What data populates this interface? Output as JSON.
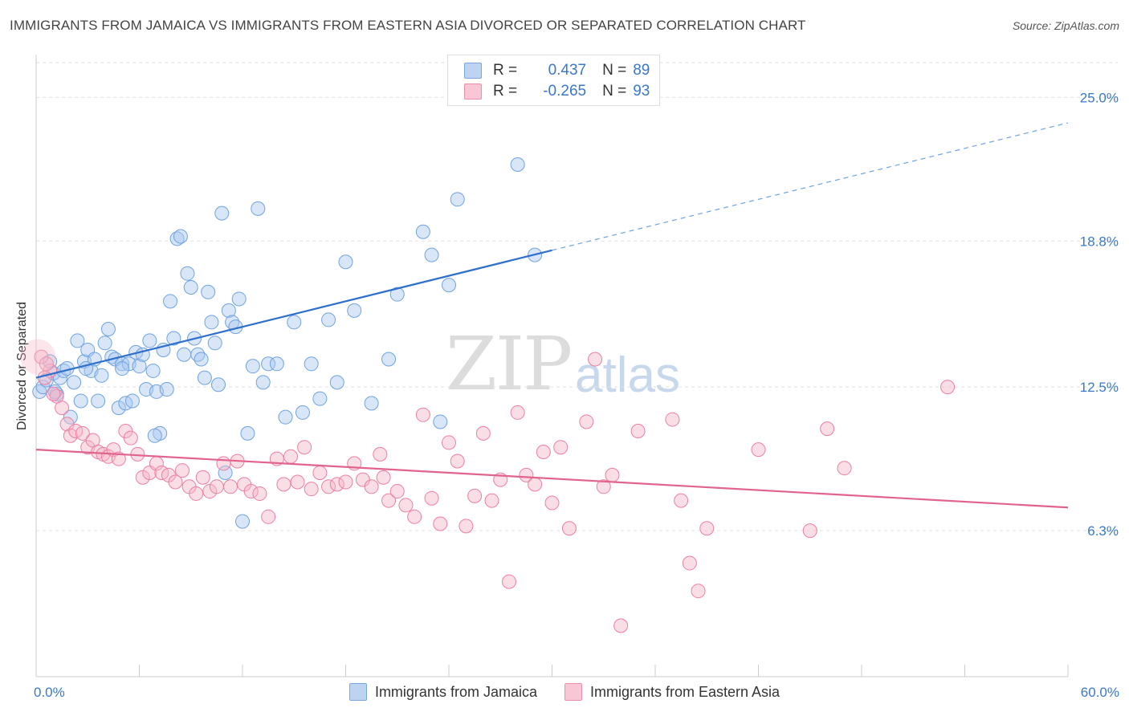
{
  "title": "IMMIGRANTS FROM JAMAICA VS IMMIGRANTS FROM EASTERN ASIA DIVORCED OR SEPARATED CORRELATION CHART",
  "source": "Source: ZipAtlas.com",
  "watermark": {
    "zip": "ZIP",
    "atlas": "atlas"
  },
  "legend": {
    "rows": [
      {
        "r_label": "R =",
        "r_value": "0.437",
        "n_label": "N =",
        "n_value": "89",
        "color": "#a9c8ef"
      },
      {
        "r_label": "R =",
        "r_value": "-0.265",
        "n_label": "N =",
        "n_value": "93",
        "color": "#f5b6c8"
      }
    ]
  },
  "bottom_legend": {
    "items": [
      {
        "label": "Immigrants from Jamaica",
        "color": "#a9c8ef"
      },
      {
        "label": "Immigrants from Eastern Asia",
        "color": "#f5b6c8"
      }
    ]
  },
  "chart_data": {
    "type": "scatter",
    "title": "IMMIGRANTS FROM JAMAICA VS IMMIGRANTS FROM EASTERN ASIA DIVORCED OR SEPARATED CORRELATION CHART",
    "xlabel": "",
    "ylabel": "Divorced or Separated",
    "xlim": [
      0,
      60
    ],
    "ylim": [
      0,
      26.5
    ],
    "x_tick_labels": [
      "0.0%",
      "60.0%"
    ],
    "y_ticks": [
      6.3,
      12.5,
      18.8,
      25.0
    ],
    "y_tick_labels": [
      "6.3%",
      "12.5%",
      "18.8%",
      "25.0%"
    ],
    "grid": true,
    "legend_position": "top-center",
    "series": [
      {
        "name": "Immigrants from Jamaica",
        "color": "#6fa3e0",
        "trend": {
          "x": [
            0,
            30
          ],
          "y": [
            12.9,
            18.4
          ],
          "extend_to": [
            60,
            23.9
          ]
        },
        "points": [
          [
            0.2,
            12.3
          ],
          [
            0.4,
            12.5
          ],
          [
            0.6,
            12.8
          ],
          [
            0.8,
            13.6
          ],
          [
            1.0,
            13.1
          ],
          [
            1.2,
            12.2
          ],
          [
            1.4,
            12.9
          ],
          [
            1.6,
            13.2
          ],
          [
            1.8,
            13.3
          ],
          [
            2.0,
            11.2
          ],
          [
            2.2,
            12.7
          ],
          [
            2.4,
            14.5
          ],
          [
            2.6,
            11.9
          ],
          [
            2.8,
            13.6
          ],
          [
            3.0,
            14.1
          ],
          [
            3.2,
            13.2
          ],
          [
            3.4,
            13.7
          ],
          [
            3.6,
            11.9
          ],
          [
            3.8,
            13.0
          ],
          [
            4.0,
            14.4
          ],
          [
            4.2,
            15.0
          ],
          [
            4.4,
            13.8
          ],
          [
            4.6,
            13.7
          ],
          [
            4.8,
            11.6
          ],
          [
            5.0,
            13.5
          ],
          [
            5.2,
            11.8
          ],
          [
            5.4,
            13.5
          ],
          [
            5.6,
            11.9
          ],
          [
            5.8,
            14.0
          ],
          [
            6.0,
            13.4
          ],
          [
            6.2,
            13.9
          ],
          [
            6.4,
            12.4
          ],
          [
            6.6,
            14.5
          ],
          [
            6.8,
            13.2
          ],
          [
            7.0,
            12.3
          ],
          [
            7.2,
            10.5
          ],
          [
            7.4,
            14.1
          ],
          [
            7.6,
            12.4
          ],
          [
            7.8,
            16.2
          ],
          [
            8.0,
            14.6
          ],
          [
            8.2,
            18.9
          ],
          [
            8.4,
            19.0
          ],
          [
            8.6,
            13.9
          ],
          [
            8.8,
            17.4
          ],
          [
            9.0,
            16.8
          ],
          [
            9.2,
            14.6
          ],
          [
            9.4,
            13.9
          ],
          [
            9.6,
            13.7
          ],
          [
            9.8,
            12.9
          ],
          [
            10.0,
            16.6
          ],
          [
            10.2,
            15.3
          ],
          [
            10.4,
            14.4
          ],
          [
            10.6,
            12.6
          ],
          [
            10.8,
            20.0
          ],
          [
            11.0,
            8.8
          ],
          [
            11.2,
            15.8
          ],
          [
            11.4,
            15.3
          ],
          [
            11.6,
            15.1
          ],
          [
            11.8,
            16.3
          ],
          [
            12.0,
            6.7
          ],
          [
            12.3,
            10.5
          ],
          [
            12.6,
            13.4
          ],
          [
            12.9,
            20.2
          ],
          [
            13.2,
            12.7
          ],
          [
            13.5,
            13.5
          ],
          [
            14.0,
            13.5
          ],
          [
            14.5,
            11.2
          ],
          [
            15.0,
            15.3
          ],
          [
            15.5,
            11.4
          ],
          [
            16.0,
            13.5
          ],
          [
            16.5,
            12.0
          ],
          [
            17.0,
            15.4
          ],
          [
            17.5,
            12.7
          ],
          [
            18.0,
            17.9
          ],
          [
            18.5,
            15.8
          ],
          [
            19.5,
            11.8
          ],
          [
            20.5,
            13.7
          ],
          [
            21.0,
            16.5
          ],
          [
            22.5,
            19.2
          ],
          [
            23.0,
            18.2
          ],
          [
            23.5,
            11.0
          ],
          [
            24.0,
            16.9
          ],
          [
            24.5,
            20.6
          ],
          [
            28.0,
            22.1
          ],
          [
            29.0,
            18.2
          ],
          [
            1.1,
            12.3
          ],
          [
            2.9,
            13.3
          ],
          [
            6.9,
            10.4
          ],
          [
            5.0,
            13.3
          ]
        ]
      },
      {
        "name": "Immigrants from Eastern Asia",
        "color": "#ec7fa2",
        "trend": {
          "x": [
            0,
            60
          ],
          "y": [
            9.8,
            7.3
          ]
        },
        "points": [
          [
            0.3,
            13.8
          ],
          [
            0.8,
            13.2
          ],
          [
            1.2,
            12.1
          ],
          [
            1.5,
            11.6
          ],
          [
            1.8,
            10.9
          ],
          [
            2.0,
            10.4
          ],
          [
            2.3,
            10.6
          ],
          [
            2.7,
            10.5
          ],
          [
            3.0,
            9.9
          ],
          [
            3.3,
            10.2
          ],
          [
            3.6,
            9.7
          ],
          [
            3.9,
            9.6
          ],
          [
            4.2,
            9.5
          ],
          [
            4.5,
            9.8
          ],
          [
            4.8,
            9.4
          ],
          [
            5.2,
            10.6
          ],
          [
            5.5,
            10.3
          ],
          [
            5.9,
            9.6
          ],
          [
            6.2,
            8.6
          ],
          [
            6.6,
            8.8
          ],
          [
            7.0,
            9.2
          ],
          [
            7.3,
            8.8
          ],
          [
            7.7,
            8.7
          ],
          [
            8.1,
            8.4
          ],
          [
            8.5,
            8.9
          ],
          [
            8.9,
            8.2
          ],
          [
            9.3,
            7.9
          ],
          [
            9.7,
            8.6
          ],
          [
            10.1,
            8.0
          ],
          [
            10.5,
            8.2
          ],
          [
            10.9,
            9.2
          ],
          [
            11.3,
            8.2
          ],
          [
            11.7,
            9.3
          ],
          [
            12.1,
            8.3
          ],
          [
            12.5,
            8.0
          ],
          [
            13.0,
            7.9
          ],
          [
            13.5,
            6.9
          ],
          [
            14.0,
            9.4
          ],
          [
            14.4,
            8.3
          ],
          [
            14.8,
            9.5
          ],
          [
            15.2,
            8.4
          ],
          [
            15.6,
            9.9
          ],
          [
            16.0,
            8.1
          ],
          [
            16.5,
            8.8
          ],
          [
            17.0,
            8.2
          ],
          [
            17.5,
            8.3
          ],
          [
            18.0,
            8.4
          ],
          [
            18.5,
            9.2
          ],
          [
            19.0,
            8.5
          ],
          [
            19.5,
            8.2
          ],
          [
            20.0,
            9.6
          ],
          [
            20.5,
            7.6
          ],
          [
            21.0,
            8.0
          ],
          [
            21.5,
            7.4
          ],
          [
            22.0,
            6.9
          ],
          [
            22.5,
            11.3
          ],
          [
            23.0,
            7.7
          ],
          [
            23.5,
            6.6
          ],
          [
            24.0,
            10.1
          ],
          [
            24.5,
            9.3
          ],
          [
            25.0,
            6.5
          ],
          [
            25.5,
            7.8
          ],
          [
            26.0,
            10.5
          ],
          [
            26.5,
            7.6
          ],
          [
            27.0,
            8.5
          ],
          [
            27.5,
            4.1
          ],
          [
            28.0,
            11.4
          ],
          [
            28.5,
            8.7
          ],
          [
            29.0,
            8.3
          ],
          [
            29.5,
            9.7
          ],
          [
            30.0,
            7.5
          ],
          [
            30.5,
            9.9
          ],
          [
            31.0,
            6.4
          ],
          [
            32.0,
            11.0
          ],
          [
            32.5,
            13.7
          ],
          [
            33.0,
            8.2
          ],
          [
            33.5,
            8.7
          ],
          [
            34.0,
            2.2
          ],
          [
            35.0,
            10.6
          ],
          [
            37.0,
            11.1
          ],
          [
            37.5,
            7.6
          ],
          [
            38.0,
            4.9
          ],
          [
            38.5,
            3.7
          ],
          [
            39.0,
            6.4
          ],
          [
            42.0,
            9.8
          ],
          [
            45.0,
            6.3
          ],
          [
            46.0,
            10.7
          ],
          [
            47.0,
            9.0
          ],
          [
            53.0,
            12.5
          ],
          [
            0.5,
            12.9
          ],
          [
            1.0,
            12.2
          ],
          [
            0.6,
            13.5
          ],
          [
            20.2,
            8.6
          ]
        ]
      }
    ]
  }
}
